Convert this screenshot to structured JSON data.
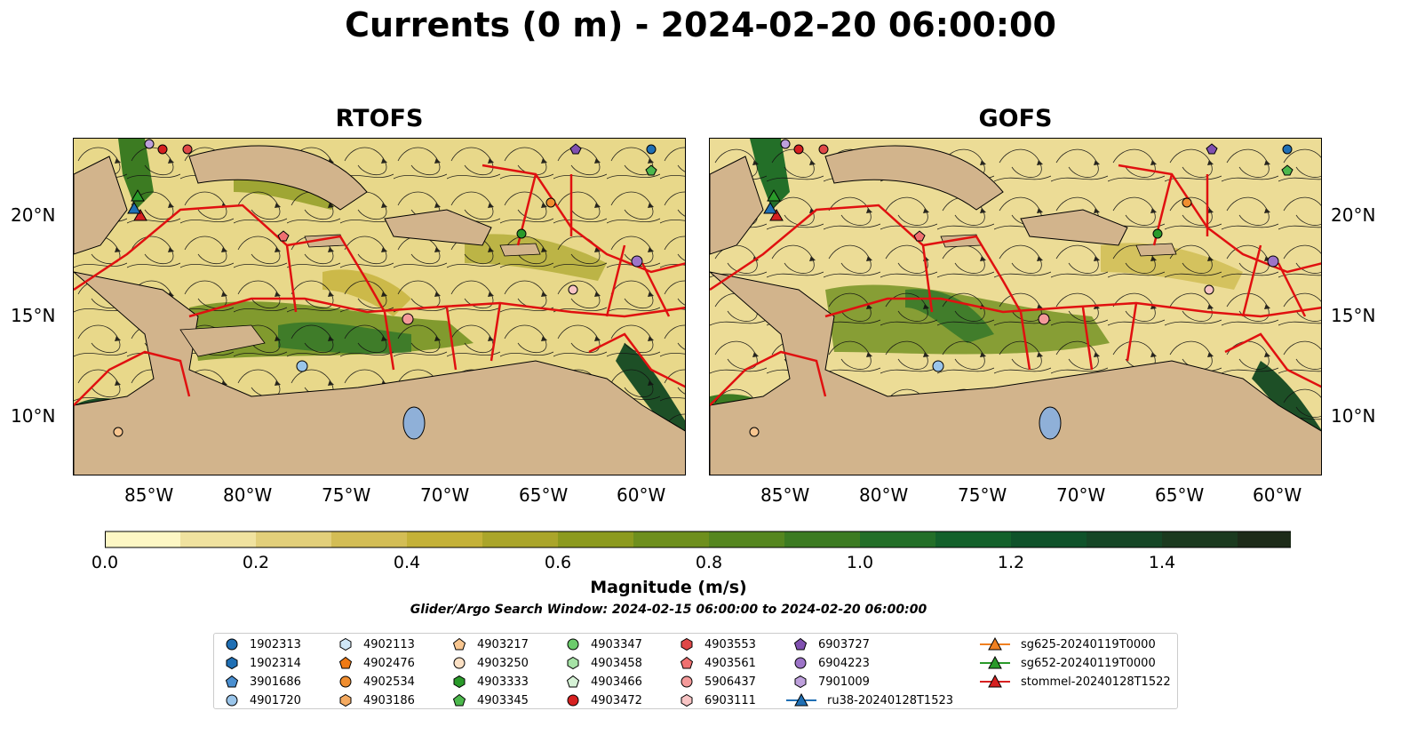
{
  "title": "Currents (0 m) - 2024-02-20 06:00:00",
  "panels": [
    {
      "title": "RTOFS"
    },
    {
      "title": "GOFS"
    }
  ],
  "lat_ticks": [
    "20°N",
    "15°N",
    "10°N"
  ],
  "lon_ticks": [
    "85°W",
    "80°W",
    "75°W",
    "70°W",
    "65°W",
    "60°W"
  ],
  "colorbar": {
    "label": "Magnitude (m/s)",
    "ticks": [
      "0.0",
      "0.2",
      "0.4",
      "0.6",
      "0.8",
      "1.0",
      "1.2",
      "1.4"
    ],
    "colors": [
      "#fdf7c4",
      "#f0e29f",
      "#e2cf7a",
      "#d3bd55",
      "#c4b138",
      "#aaa52a",
      "#8c9a1e",
      "#6e8f1d",
      "#55861f",
      "#3c7b22",
      "#236f28",
      "#13612b",
      "#0f522a",
      "#154626",
      "#1b3a1f",
      "#1d2b19"
    ],
    "extend": "max"
  },
  "search_window": "Glider/Argo Search Window: 2024-02-15 06:00:00 to 2024-02-20 06:00:00",
  "legend": [
    {
      "label": "1902313",
      "marker": "circle",
      "color": "#1f6fb4"
    },
    {
      "label": "1902314",
      "marker": "hexagon",
      "color": "#1f6fb4"
    },
    {
      "label": "3901686",
      "marker": "pentagon",
      "color": "#4a8fd0"
    },
    {
      "label": "4901720",
      "marker": "circle",
      "color": "#9ac5ea"
    },
    {
      "label": "4902113",
      "marker": "hexagon",
      "color": "#cfe7f7"
    },
    {
      "label": "4902476",
      "marker": "pentagon",
      "color": "#f07a14"
    },
    {
      "label": "4902534",
      "marker": "circle",
      "color": "#f08e30"
    },
    {
      "label": "4903186",
      "marker": "hexagon",
      "color": "#f5aa60"
    },
    {
      "label": "4903217",
      "marker": "pentagon",
      "color": "#f8c690"
    },
    {
      "label": "4903250",
      "marker": "circle",
      "color": "#fbe0c4"
    },
    {
      "label": "4903333",
      "marker": "hexagon",
      "color": "#2a9a2a"
    },
    {
      "label": "4903345",
      "marker": "pentagon",
      "color": "#4cb84c"
    },
    {
      "label": "4903347",
      "marker": "circle",
      "color": "#6ccc6c"
    },
    {
      "label": "4903458",
      "marker": "hexagon",
      "color": "#a6e2a6"
    },
    {
      "label": "4903466",
      "marker": "pentagon",
      "color": "#d6f2d6"
    },
    {
      "label": "4903472",
      "marker": "circle",
      "color": "#d62020"
    },
    {
      "label": "4903553",
      "marker": "hexagon",
      "color": "#e04848"
    },
    {
      "label": "4903561",
      "marker": "pentagon",
      "color": "#f07070"
    },
    {
      "label": "5906437",
      "marker": "circle",
      "color": "#f49a9a"
    },
    {
      "label": "6903111",
      "marker": "hexagon",
      "color": "#f8c4c4"
    },
    {
      "label": "6903727",
      "marker": "pentagon",
      "color": "#8050b0"
    },
    {
      "label": "6904223",
      "marker": "circle",
      "color": "#9d74c8"
    },
    {
      "label": "7901009",
      "marker": "hexagon",
      "color": "#bea0dc"
    },
    {
      "label": "ru38-20240128T1523",
      "marker": "triangle-line",
      "color": "#1f6fb4"
    },
    {
      "label": "sg625-20240119T0000",
      "marker": "triangle-line",
      "color": "#f08020"
    },
    {
      "label": "sg652-20240119T0000",
      "marker": "triangle-line",
      "color": "#2a9a2a"
    },
    {
      "label": "stommel-20240128T1522",
      "marker": "triangle-line",
      "color": "#d62020"
    }
  ]
}
